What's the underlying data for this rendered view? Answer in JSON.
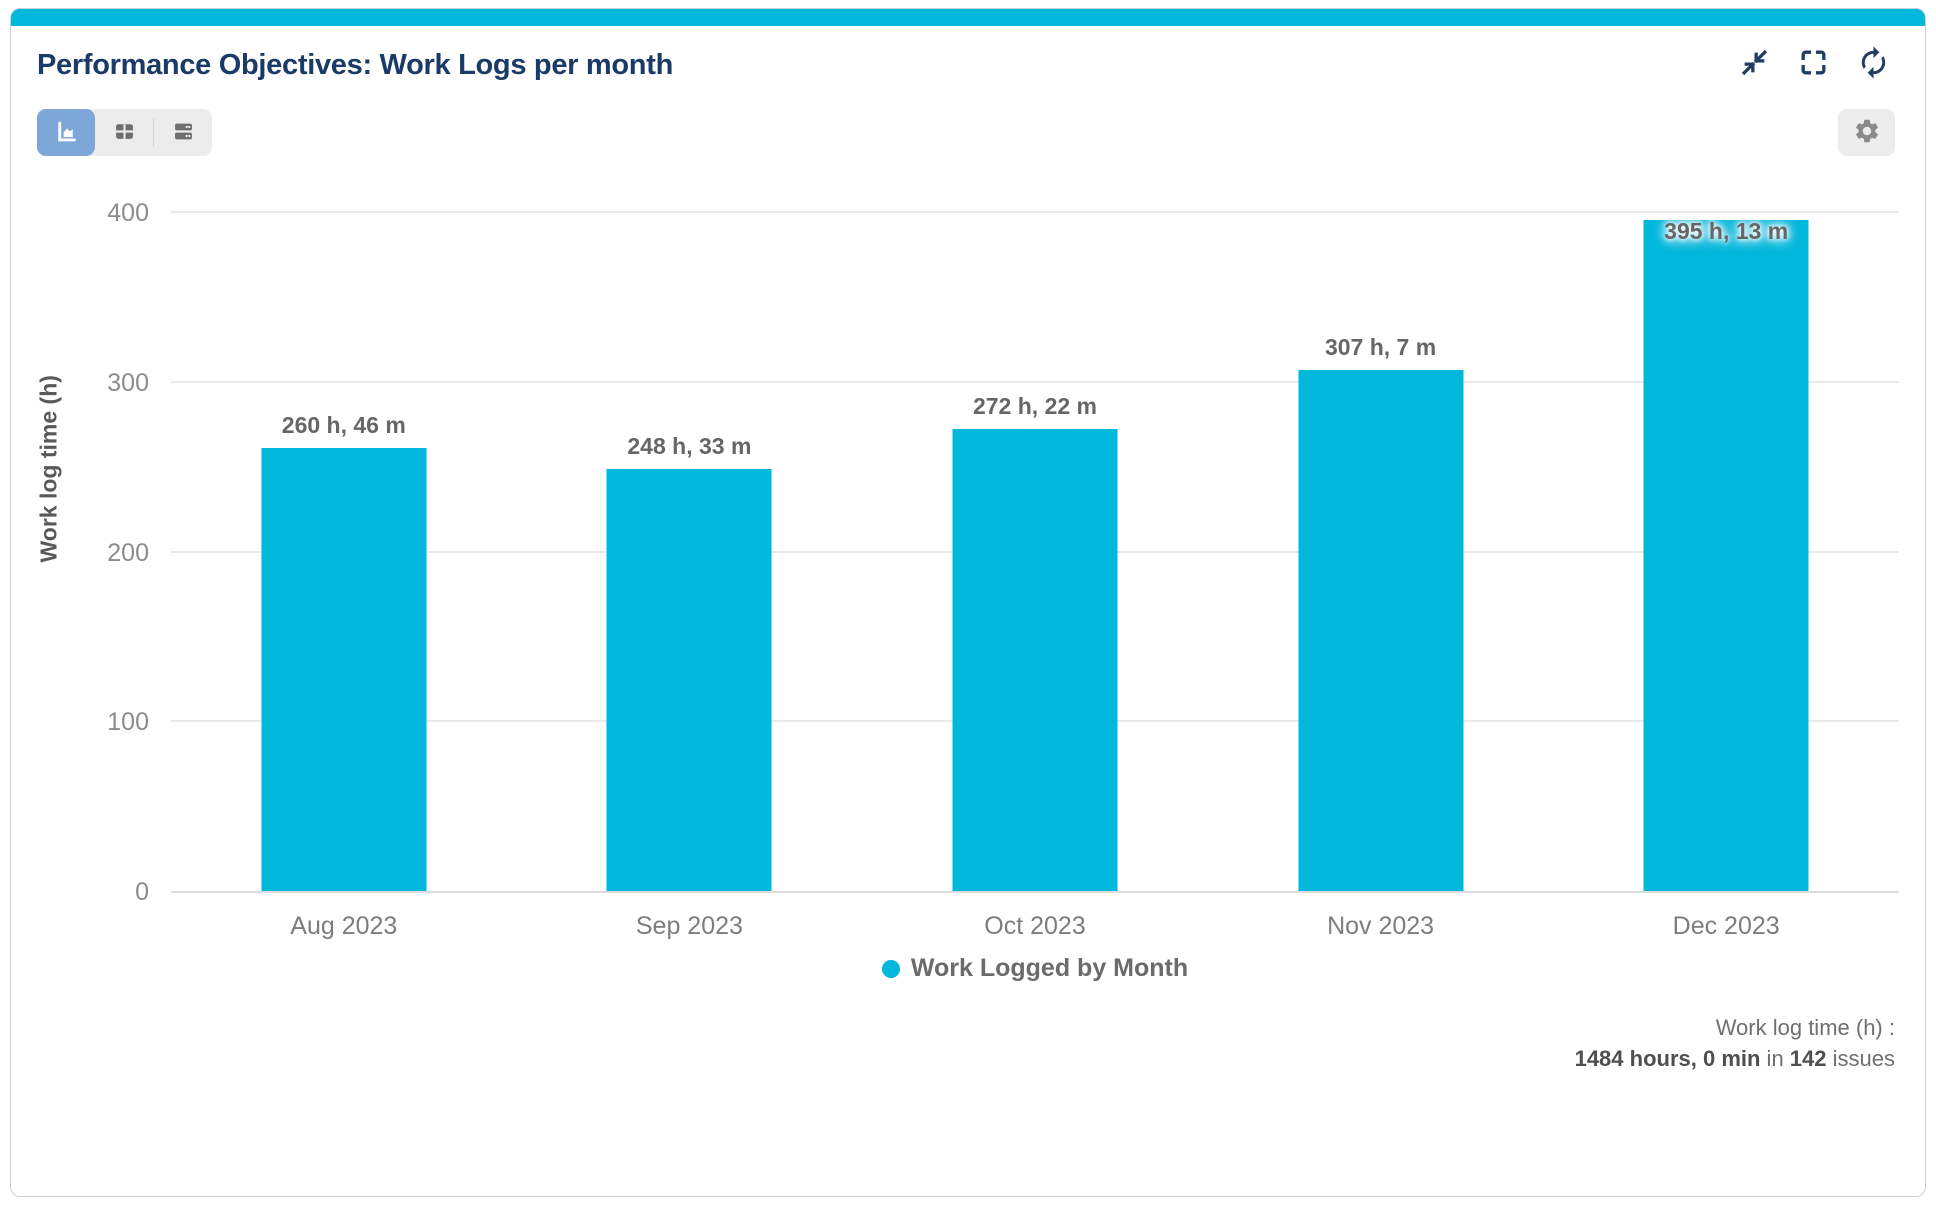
{
  "header": {
    "title": "Performance Objectives: Work Logs per month"
  },
  "window_controls": {
    "collapse_icon": "collapse-icon",
    "fullscreen_icon": "fullscreen-icon",
    "refresh_icon": "refresh-icon"
  },
  "toolbar": {
    "views": [
      {
        "id": "chart",
        "icon": "area-chart-icon",
        "active": true
      },
      {
        "id": "table",
        "icon": "table-icon",
        "active": false
      },
      {
        "id": "rows",
        "icon": "rows-icon",
        "active": false
      }
    ],
    "settings_icon": "gear-icon"
  },
  "chart_data": {
    "type": "bar",
    "title": "Performance Objectives: Work Logs per month",
    "xlabel": "",
    "ylabel": "Work log time (h)",
    "ylim": [
      0,
      400
    ],
    "yticks": [
      0,
      100,
      200,
      300,
      400
    ],
    "grid": true,
    "categories": [
      "Aug 2023",
      "Sep 2023",
      "Oct 2023",
      "Nov 2023",
      "Dec 2023"
    ],
    "series": [
      {
        "name": "Work Logged by Month",
        "color": "#00b7dc",
        "values": [
          260.77,
          248.55,
          272.37,
          307.12,
          395.22
        ],
        "labels": [
          "260 h, 46 m",
          "248 h, 33 m",
          "272 h, 22 m",
          "307 h, 7 m",
          "395 h, 13 m"
        ]
      }
    ],
    "legend": {
      "position": "bottom",
      "entries": [
        "Work Logged by Month"
      ]
    }
  },
  "summary": {
    "caption": "Work log time (h) :",
    "total": "1484 hours, 0 min",
    "connector": " in ",
    "issue_count": "142",
    "suffix": " issues"
  },
  "colors": {
    "accent": "#00b7dc",
    "active_button": "#7da7d8",
    "title_text": "#1a3a67",
    "icon_navy": "#1e3c64",
    "icon_gray": "#6e6e6e"
  }
}
